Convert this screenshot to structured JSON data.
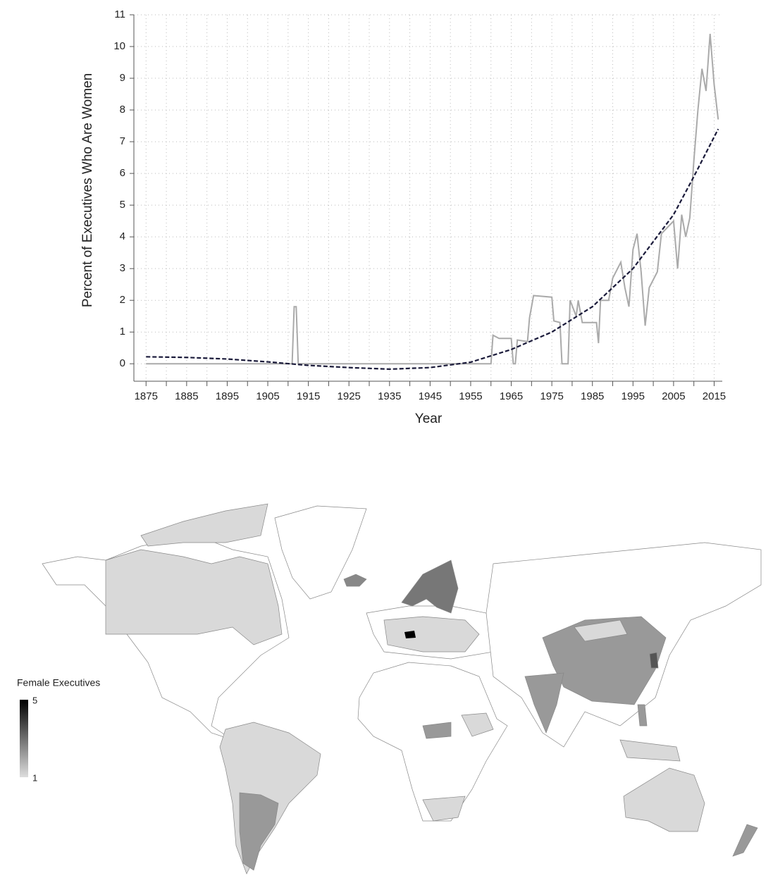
{
  "chart_data": [
    {
      "type": "line",
      "xlabel": "Year",
      "ylabel": "Percent of Executives Who Are Women",
      "xlim": [
        1872,
        2017
      ],
      "ylim": [
        -0.55,
        11
      ],
      "xticks": [
        1875,
        1885,
        1895,
        1905,
        1915,
        1925,
        1935,
        1945,
        1955,
        1965,
        1975,
        1985,
        1995,
        2005,
        2015
      ],
      "yticks": [
        0,
        1,
        2,
        3,
        4,
        5,
        6,
        7,
        8,
        9,
        10,
        11
      ],
      "grid": true,
      "series": [
        {
          "color": "#aaaaaa",
          "style": "solid",
          "x": [
            1875,
            1911,
            1911.5,
            1912,
            1912.5,
            1960,
            1960.5,
            1962,
            1965,
            1965.5,
            1966,
            1966.5,
            1969,
            1969.5,
            1970.5,
            1975,
            1975.5,
            1977,
            1977.5,
            1979,
            1979.5,
            1981,
            1981.5,
            1982.5,
            1983,
            1986,
            1986.5,
            1987,
            1989,
            1990,
            1992,
            1993,
            1994,
            1995,
            1996,
            1997,
            1998,
            1999,
            2001,
            2002,
            2005,
            2006,
            2007,
            2008,
            2009,
            2010,
            2011,
            2012,
            2013,
            2014,
            2015,
            2016
          ],
          "values": [
            0,
            0,
            1.8,
            1.8,
            0,
            0,
            0.9,
            0.8,
            0.8,
            0,
            0,
            0.75,
            0.7,
            1.45,
            2.15,
            2.1,
            1.35,
            1.3,
            0,
            0,
            2.0,
            1.5,
            2.0,
            1.3,
            1.3,
            1.3,
            0.65,
            2.0,
            2.0,
            2.7,
            3.2,
            2.4,
            1.8,
            3.6,
            4.1,
            2.9,
            1.2,
            2.4,
            2.9,
            4.1,
            4.5,
            3.0,
            4.7,
            4.0,
            4.6,
            6.4,
            8.0,
            9.3,
            8.6,
            10.4,
            8.8,
            7.7
          ]
        },
        {
          "color": "#1a1a3a",
          "style": "dashed",
          "x": [
            1875,
            1885,
            1895,
            1905,
            1915,
            1925,
            1935,
            1945,
            1955,
            1965,
            1975,
            1985,
            1995,
            2005,
            2010,
            2016
          ],
          "values": [
            0.22,
            0.2,
            0.15,
            0.06,
            -0.05,
            -0.12,
            -0.17,
            -0.12,
            0.05,
            0.45,
            1.0,
            1.8,
            3.0,
            4.7,
            5.9,
            7.4
          ]
        }
      ]
    },
    {
      "type": "map",
      "legend_title": "Female Executives",
      "colorbar_range": [
        1,
        5
      ],
      "colorbar_ticks": [
        1,
        5
      ],
      "colors": [
        "#dddddd",
        "#000000"
      ]
    }
  ]
}
